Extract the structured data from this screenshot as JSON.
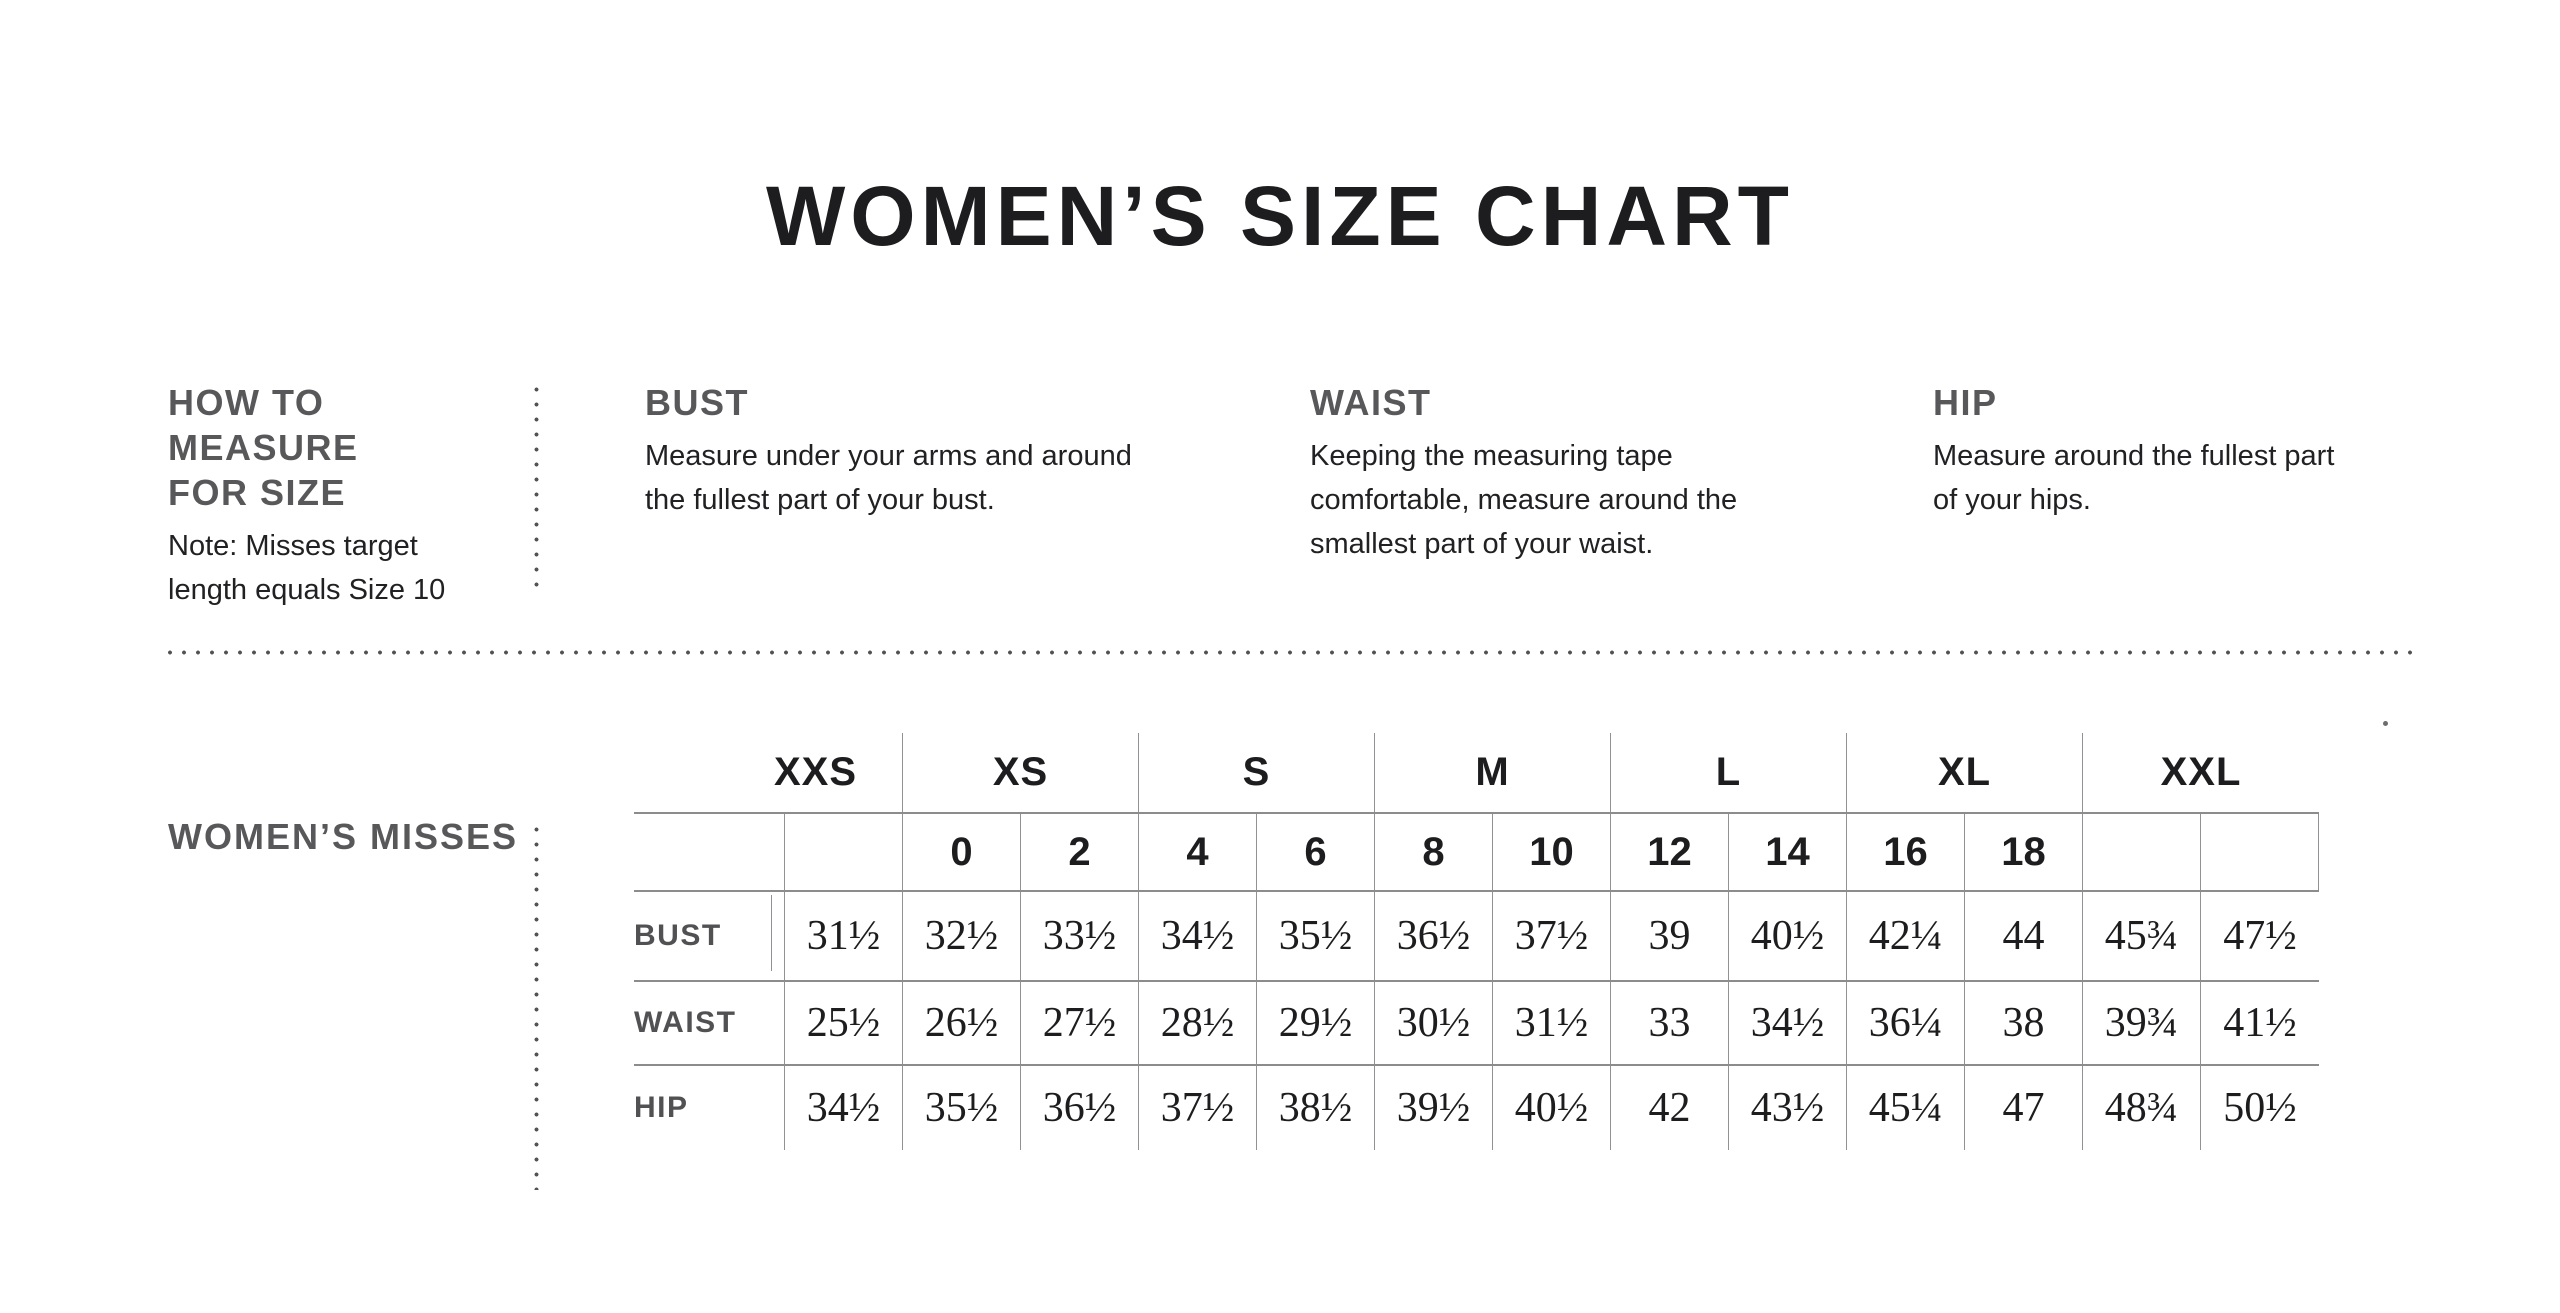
{
  "title": "WOMEN’S SIZE CHART",
  "colors": {
    "heading_gray": "#58585a",
    "body_text": "#212124",
    "table_text": "#1d1d1f",
    "border_horizontal": "#8c8c8c",
    "border_vertical": "#929294",
    "dots": "#535355",
    "background": "#ffffff"
  },
  "measure_guide": {
    "heading_line1": "HOW TO MEASURE",
    "heading_line2": "FOR SIZE",
    "note_line1": "Note: Misses target",
    "note_line2": "length equals Size 10",
    "sections": [
      {
        "heading": "BUST",
        "text": "Measure under your arms and around the fullest part of your bust."
      },
      {
        "heading": "WAIST",
        "text": "Keeping the measuring tape comfortable, measure around the smallest part of your waist."
      },
      {
        "heading": "HIP",
        "text": "Measure around the fullest part of your hips."
      }
    ]
  },
  "size_table": {
    "section_label": "WOMEN’S MISSES",
    "group_headers": [
      {
        "label": "XXS",
        "span": 1
      },
      {
        "label": "XS",
        "span": 2
      },
      {
        "label": "S",
        "span": 2
      },
      {
        "label": "M",
        "span": 2
      },
      {
        "label": "L",
        "span": 2
      },
      {
        "label": "XL",
        "span": 2
      },
      {
        "label": "XXL",
        "span": 2
      }
    ],
    "numeric_sizes": [
      "",
      "0",
      "2",
      "4",
      "6",
      "8",
      "10",
      "12",
      "14",
      "16",
      "18",
      "",
      ""
    ],
    "rows": [
      {
        "label": "BUST",
        "values": [
          "31½",
          "32½",
          "33½",
          "34½",
          "35½",
          "36½",
          "37½",
          "39",
          "40½",
          "42¼",
          "44",
          "45¾",
          "47½"
        ]
      },
      {
        "label": "WAIST",
        "values": [
          "25½",
          "26½",
          "27½",
          "28½",
          "29½",
          "30½",
          "31½",
          "33",
          "34½",
          "36¼",
          "38",
          "39¾",
          "41½"
        ]
      },
      {
        "label": "HIP",
        "values": [
          "34½",
          "35½",
          "36½",
          "37½",
          "38½",
          "39½",
          "40½",
          "42",
          "43½",
          "45¼",
          "47",
          "48¾",
          "50½"
        ]
      }
    ]
  }
}
